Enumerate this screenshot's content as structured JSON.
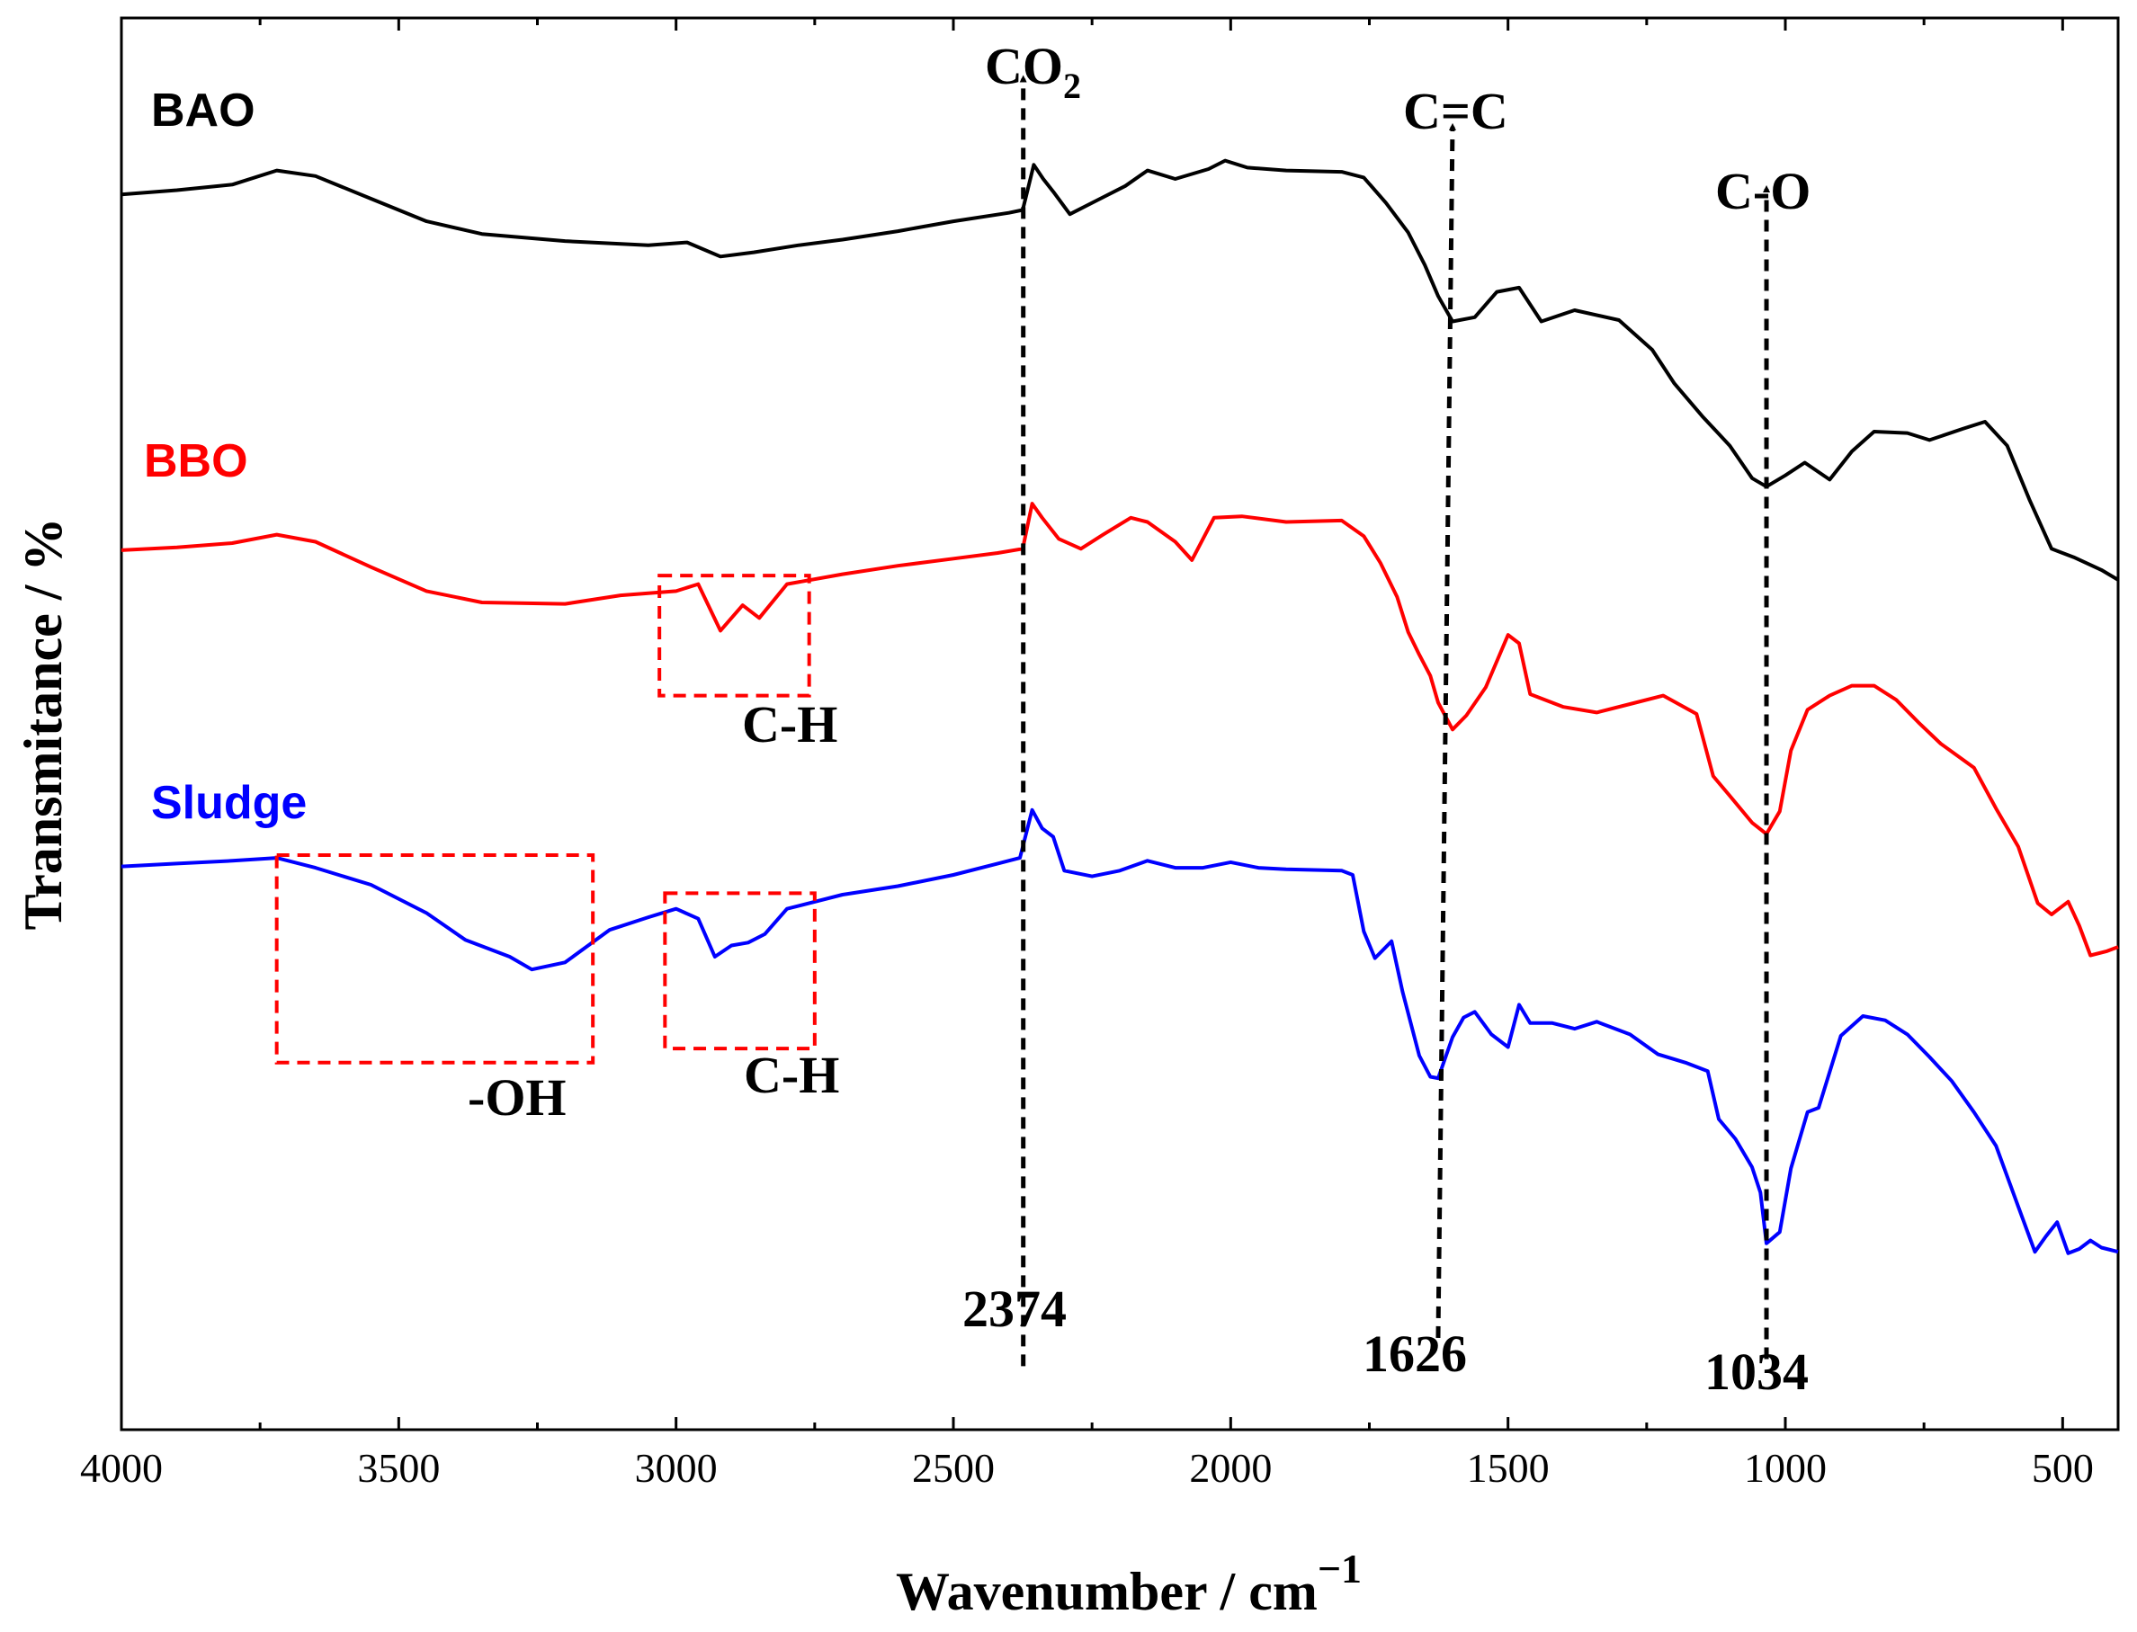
{
  "chart_data": {
    "type": "line",
    "title": "",
    "xlabel": "Wavenumber / cm",
    "xlabel_superscript": "−1",
    "ylabel": "Transmitance / %",
    "xlim": [
      4000,
      400
    ],
    "ylim": [
      0,
      100
    ],
    "x_reversed": true,
    "y_ticks_shown": false,
    "x_tick_labels": [
      "4000",
      "3500",
      "3000",
      "2500",
      "2000",
      "1500",
      "1000",
      "500"
    ],
    "x_tick_values": [
      4000,
      3500,
      3000,
      2500,
      2000,
      1500,
      1000,
      500
    ],
    "series": [
      {
        "name": "BAO",
        "color": "#000000",
        "points": [
          [
            4000,
            87.5
          ],
          [
            3900,
            87.8
          ],
          [
            3800,
            88.2
          ],
          [
            3720,
            89.2
          ],
          [
            3650,
            88.8
          ],
          [
            3550,
            87.2
          ],
          [
            3450,
            85.6
          ],
          [
            3350,
            84.7
          ],
          [
            3200,
            84.2
          ],
          [
            3050,
            83.9
          ],
          [
            2980,
            84.1
          ],
          [
            2920,
            83.1
          ],
          [
            2860,
            83.4
          ],
          [
            2780,
            83.9
          ],
          [
            2700,
            84.3
          ],
          [
            2600,
            84.9
          ],
          [
            2500,
            85.6
          ],
          [
            2400,
            86.2
          ],
          [
            2375,
            86.4
          ],
          [
            2355,
            89.6
          ],
          [
            2338,
            88.6
          ],
          [
            2320,
            87.7
          ],
          [
            2290,
            86.1
          ],
          [
            2240,
            87.1
          ],
          [
            2190,
            88.1
          ],
          [
            2150,
            89.2
          ],
          [
            2100,
            88.6
          ],
          [
            2040,
            89.3
          ],
          [
            2010,
            89.9
          ],
          [
            1970,
            89.4
          ],
          [
            1900,
            89.2
          ],
          [
            1800,
            89.1
          ],
          [
            1760,
            88.7
          ],
          [
            1720,
            86.9
          ],
          [
            1680,
            84.8
          ],
          [
            1650,
            82.5
          ],
          [
            1626,
            80.3
          ],
          [
            1600,
            78.5
          ],
          [
            1560,
            78.8
          ],
          [
            1520,
            80.6
          ],
          [
            1480,
            80.9
          ],
          [
            1440,
            78.5
          ],
          [
            1380,
            79.3
          ],
          [
            1300,
            78.6
          ],
          [
            1240,
            76.5
          ],
          [
            1200,
            74.1
          ],
          [
            1150,
            71.8
          ],
          [
            1100,
            69.7
          ],
          [
            1060,
            67.4
          ],
          [
            1034,
            66.8
          ],
          [
            1000,
            67.6
          ],
          [
            965,
            68.5
          ],
          [
            920,
            67.3
          ],
          [
            880,
            69.3
          ],
          [
            840,
            70.7
          ],
          [
            780,
            70.6
          ],
          [
            740,
            70.1
          ],
          [
            680,
            70.9
          ],
          [
            640,
            71.4
          ],
          [
            600,
            69.7
          ],
          [
            560,
            65.9
          ],
          [
            520,
            62.4
          ],
          [
            480,
            61.8
          ],
          [
            430,
            60.9
          ],
          [
            400,
            60.2
          ]
        ]
      },
      {
        "name": "BBO",
        "color": "#ff0000",
        "points": [
          [
            4000,
            62.3
          ],
          [
            3900,
            62.5
          ],
          [
            3800,
            62.8
          ],
          [
            3720,
            63.4
          ],
          [
            3650,
            62.9
          ],
          [
            3550,
            61.1
          ],
          [
            3450,
            59.4
          ],
          [
            3350,
            58.6
          ],
          [
            3200,
            58.5
          ],
          [
            3100,
            59.1
          ],
          [
            3000,
            59.4
          ],
          [
            2960,
            59.9
          ],
          [
            2920,
            56.6
          ],
          [
            2880,
            58.4
          ],
          [
            2850,
            57.5
          ],
          [
            2800,
            59.9
          ],
          [
            2700,
            60.6
          ],
          [
            2600,
            61.2
          ],
          [
            2500,
            61.7
          ],
          [
            2420,
            62.1
          ],
          [
            2375,
            62.4
          ],
          [
            2358,
            65.6
          ],
          [
            2340,
            64.6
          ],
          [
            2310,
            63.1
          ],
          [
            2270,
            62.4
          ],
          [
            2230,
            63.4
          ],
          [
            2180,
            64.6
          ],
          [
            2150,
            64.3
          ],
          [
            2100,
            62.9
          ],
          [
            2070,
            61.6
          ],
          [
            2030,
            64.6
          ],
          [
            1980,
            64.7
          ],
          [
            1900,
            64.3
          ],
          [
            1800,
            64.4
          ],
          [
            1760,
            63.3
          ],
          [
            1730,
            61.4
          ],
          [
            1700,
            59.0
          ],
          [
            1680,
            56.5
          ],
          [
            1660,
            54.9
          ],
          [
            1640,
            53.4
          ],
          [
            1626,
            51.5
          ],
          [
            1600,
            49.6
          ],
          [
            1575,
            50.6
          ],
          [
            1540,
            52.6
          ],
          [
            1500,
            56.3
          ],
          [
            1480,
            55.7
          ],
          [
            1460,
            52.1
          ],
          [
            1400,
            51.2
          ],
          [
            1340,
            50.8
          ],
          [
            1280,
            51.4
          ],
          [
            1220,
            52.0
          ],
          [
            1160,
            50.7
          ],
          [
            1130,
            46.3
          ],
          [
            1100,
            44.9
          ],
          [
            1060,
            43.0
          ],
          [
            1034,
            42.2
          ],
          [
            1010,
            43.8
          ],
          [
            990,
            48.1
          ],
          [
            960,
            51.0
          ],
          [
            920,
            52.0
          ],
          [
            880,
            52.7
          ],
          [
            840,
            52.7
          ],
          [
            800,
            51.7
          ],
          [
            760,
            50.1
          ],
          [
            720,
            48.6
          ],
          [
            660,
            46.9
          ],
          [
            620,
            44.0
          ],
          [
            580,
            41.3
          ],
          [
            545,
            37.3
          ],
          [
            520,
            36.5
          ],
          [
            490,
            37.4
          ],
          [
            470,
            35.7
          ],
          [
            450,
            33.6
          ],
          [
            420,
            33.9
          ],
          [
            400,
            34.2
          ]
        ]
      },
      {
        "name": "Sludge",
        "color": "#0000ff",
        "points": [
          [
            4000,
            39.9
          ],
          [
            3900,
            40.1
          ],
          [
            3800,
            40.3
          ],
          [
            3720,
            40.5
          ],
          [
            3650,
            39.8
          ],
          [
            3550,
            38.6
          ],
          [
            3450,
            36.6
          ],
          [
            3380,
            34.7
          ],
          [
            3300,
            33.5
          ],
          [
            3260,
            32.6
          ],
          [
            3200,
            33.1
          ],
          [
            3120,
            35.4
          ],
          [
            3050,
            36.3
          ],
          [
            3000,
            36.9
          ],
          [
            2960,
            36.2
          ],
          [
            2930,
            33.5
          ],
          [
            2900,
            34.3
          ],
          [
            2870,
            34.5
          ],
          [
            2840,
            35.1
          ],
          [
            2800,
            36.9
          ],
          [
            2700,
            37.9
          ],
          [
            2600,
            38.5
          ],
          [
            2500,
            39.3
          ],
          [
            2420,
            40.1
          ],
          [
            2380,
            40.5
          ],
          [
            2358,
            43.9
          ],
          [
            2340,
            42.6
          ],
          [
            2320,
            42.0
          ],
          [
            2300,
            39.6
          ],
          [
            2250,
            39.2
          ],
          [
            2200,
            39.6
          ],
          [
            2150,
            40.3
          ],
          [
            2100,
            39.8
          ],
          [
            2050,
            39.8
          ],
          [
            2000,
            40.2
          ],
          [
            1950,
            39.8
          ],
          [
            1900,
            39.7
          ],
          [
            1800,
            39.6
          ],
          [
            1780,
            39.3
          ],
          [
            1760,
            35.3
          ],
          [
            1740,
            33.4
          ],
          [
            1710,
            34.6
          ],
          [
            1690,
            31.0
          ],
          [
            1660,
            26.5
          ],
          [
            1640,
            25.0
          ],
          [
            1626,
            24.9
          ],
          [
            1600,
            27.8
          ],
          [
            1580,
            29.2
          ],
          [
            1560,
            29.6
          ],
          [
            1530,
            28.0
          ],
          [
            1500,
            27.1
          ],
          [
            1480,
            30.1
          ],
          [
            1460,
            28.8
          ],
          [
            1420,
            28.8
          ],
          [
            1380,
            28.4
          ],
          [
            1340,
            28.9
          ],
          [
            1280,
            28.0
          ],
          [
            1230,
            26.6
          ],
          [
            1180,
            26.0
          ],
          [
            1140,
            25.4
          ],
          [
            1120,
            22.0
          ],
          [
            1090,
            20.6
          ],
          [
            1060,
            18.6
          ],
          [
            1045,
            16.8
          ],
          [
            1034,
            13.2
          ],
          [
            1010,
            14.0
          ],
          [
            990,
            18.5
          ],
          [
            960,
            22.5
          ],
          [
            940,
            22.8
          ],
          [
            900,
            27.9
          ],
          [
            860,
            29.3
          ],
          [
            820,
            29.0
          ],
          [
            780,
            28.0
          ],
          [
            740,
            26.4
          ],
          [
            700,
            24.7
          ],
          [
            660,
            22.5
          ],
          [
            620,
            20.1
          ],
          [
            580,
            15.8
          ],
          [
            550,
            12.6
          ],
          [
            530,
            13.7
          ],
          [
            510,
            14.7
          ],
          [
            490,
            12.5
          ],
          [
            470,
            12.8
          ],
          [
            450,
            13.4
          ],
          [
            430,
            12.9
          ],
          [
            400,
            12.6
          ]
        ]
      }
    ],
    "labels": {
      "bao": "BAO",
      "bbo": "BBO",
      "sludge": "Sludge",
      "co2_base": "CO",
      "co2_sub": "2",
      "cc": "C=C",
      "co": "C-O",
      "ch_bbo": "C-H",
      "ch_sludge": "C-H",
      "oh": "-OH",
      "v2374": "2374",
      "v1626": "1626",
      "v1034": "1034"
    },
    "colors": {
      "highlight_box": "#ff0000",
      "guide_line": "#000000"
    }
  }
}
